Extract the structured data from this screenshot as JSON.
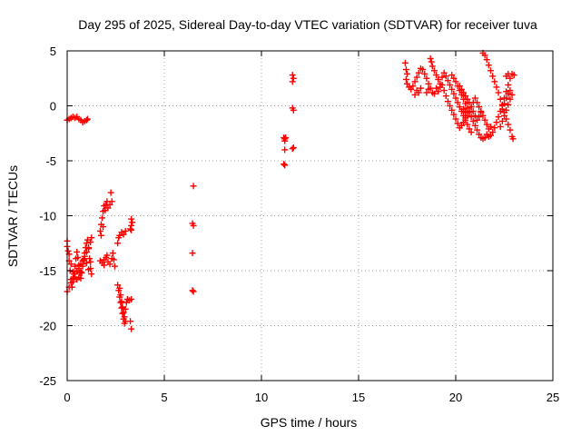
{
  "chart_data": {
    "type": "scatter",
    "title": "Day 295 of 2025, Sidereal Day-to-day VTEC variation (SDTVAR) for receiver tuva",
    "xlabel": "GPS time / hours",
    "ylabel": "SDTVAR / TECUs",
    "xlim": [
      0,
      25
    ],
    "ylim": [
      -25,
      5
    ],
    "xticks": [
      0,
      5,
      10,
      15,
      20,
      25
    ],
    "yticks": [
      -25,
      -20,
      -15,
      -10,
      -5,
      0,
      5
    ],
    "grid": true,
    "marker": "+",
    "color": "#ff0000",
    "series": [
      {
        "name": "sdtvar",
        "points": [
          [
            0.0,
            -1.3
          ],
          [
            0.1,
            -1.2
          ],
          [
            0.2,
            -1.1
          ],
          [
            0.3,
            -1.0
          ],
          [
            0.4,
            -1.1
          ],
          [
            0.5,
            -1.0
          ],
          [
            0.6,
            -1.2
          ],
          [
            0.7,
            -1.3
          ],
          [
            0.8,
            -1.5
          ],
          [
            0.9,
            -1.4
          ],
          [
            1.0,
            -1.3
          ],
          [
            1.05,
            -1.2
          ],
          [
            0.0,
            -12.3
          ],
          [
            0.05,
            -13.2
          ],
          [
            0.1,
            -14.1
          ],
          [
            0.15,
            -15.0
          ],
          [
            0.2,
            -15.8
          ],
          [
            0.25,
            -16.5
          ],
          [
            0.3,
            -16.0
          ],
          [
            0.35,
            -15.3
          ],
          [
            0.4,
            -14.6
          ],
          [
            0.45,
            -13.9
          ],
          [
            0.5,
            -13.3
          ],
          [
            0.55,
            -13.8
          ],
          [
            0.6,
            -14.5
          ],
          [
            0.65,
            -15.2
          ],
          [
            0.7,
            -15.7
          ],
          [
            0.75,
            -15.2
          ],
          [
            0.8,
            -14.6
          ],
          [
            0.85,
            -14.0
          ],
          [
            0.9,
            -13.4
          ],
          [
            0.95,
            -12.9
          ],
          [
            1.0,
            -12.5
          ],
          [
            1.05,
            -12.2
          ],
          [
            1.1,
            -13.0
          ],
          [
            1.15,
            -13.9
          ],
          [
            1.2,
            -14.8
          ],
          [
            1.25,
            -15.3
          ],
          [
            0.0,
            -16.9
          ],
          [
            0.1,
            -16.5
          ],
          [
            0.2,
            -16.1
          ],
          [
            0.3,
            -15.7
          ],
          [
            0.4,
            -15.3
          ],
          [
            0.5,
            -15.0
          ],
          [
            0.6,
            -14.8
          ],
          [
            0.7,
            -14.4
          ],
          [
            0.8,
            -14.1
          ],
          [
            0.9,
            -13.7
          ],
          [
            1.0,
            -13.3
          ],
          [
            1.1,
            -12.9
          ],
          [
            1.2,
            -12.4
          ],
          [
            1.25,
            -12.0
          ],
          [
            0.0,
            -12.8
          ],
          [
            0.1,
            -13.5
          ],
          [
            0.2,
            -14.4
          ],
          [
            0.3,
            -15.1
          ],
          [
            0.4,
            -15.6
          ],
          [
            0.5,
            -15.8
          ],
          [
            0.6,
            -15.6
          ],
          [
            0.7,
            -15.1
          ],
          [
            0.8,
            -14.4
          ],
          [
            0.9,
            -13.9
          ],
          [
            1.0,
            -14.3
          ],
          [
            1.1,
            -14.9
          ],
          [
            1.2,
            -14.2
          ],
          [
            1.7,
            -11.4
          ],
          [
            1.75,
            -10.8
          ],
          [
            1.8,
            -10.2
          ],
          [
            1.85,
            -9.6
          ],
          [
            1.9,
            -9.1
          ],
          [
            1.95,
            -9.5
          ],
          [
            2.0,
            -9.0
          ],
          [
            2.05,
            -8.7
          ],
          [
            2.1,
            -9.3
          ],
          [
            2.2,
            -9.0
          ],
          [
            2.3,
            -8.7
          ],
          [
            2.25,
            -7.9
          ],
          [
            1.75,
            -11.8
          ],
          [
            1.85,
            -11.0
          ],
          [
            1.7,
            -14.1
          ],
          [
            1.8,
            -14.3
          ],
          [
            1.9,
            -14.0
          ],
          [
            2.0,
            -13.8
          ],
          [
            2.1,
            -14.2
          ],
          [
            2.2,
            -14.4
          ],
          [
            2.3,
            -13.9
          ],
          [
            2.35,
            -13.4
          ],
          [
            2.4,
            -14.0
          ],
          [
            2.45,
            -14.6
          ],
          [
            1.9,
            -14.5
          ],
          [
            2.05,
            -13.6
          ],
          [
            2.6,
            -12.5
          ],
          [
            2.65,
            -12.0
          ],
          [
            2.7,
            -11.8
          ],
          [
            2.8,
            -11.5
          ],
          [
            2.9,
            -11.7
          ],
          [
            3.0,
            -11.4
          ],
          [
            2.6,
            -16.3
          ],
          [
            2.65,
            -16.8
          ],
          [
            2.7,
            -17.4
          ],
          [
            2.75,
            -17.9
          ],
          [
            2.8,
            -18.4
          ],
          [
            2.85,
            -18.9
          ],
          [
            2.9,
            -19.4
          ],
          [
            2.95,
            -19.8
          ],
          [
            3.0,
            -19.6
          ],
          [
            2.7,
            -16.6
          ],
          [
            2.75,
            -17.2
          ],
          [
            2.8,
            -17.8
          ],
          [
            2.85,
            -18.3
          ],
          [
            2.9,
            -18.8
          ],
          [
            2.95,
            -19.2
          ],
          [
            3.0,
            -18.5
          ],
          [
            3.05,
            -17.9
          ],
          [
            3.1,
            -17.6
          ],
          [
            3.2,
            -17.7
          ],
          [
            3.3,
            -17.6
          ],
          [
            3.25,
            -19.6
          ],
          [
            3.3,
            -20.3
          ],
          [
            3.3,
            -10.3
          ],
          [
            3.35,
            -10.6
          ],
          [
            3.3,
            -10.9
          ],
          [
            3.3,
            -11.3
          ],
          [
            3.25,
            -11.2
          ],
          [
            6.5,
            -7.3
          ],
          [
            6.45,
            -10.7
          ],
          [
            6.5,
            -10.9
          ],
          [
            6.45,
            -13.4
          ],
          [
            6.45,
            -16.8
          ],
          [
            6.5,
            -16.9
          ],
          [
            11.15,
            -2.9
          ],
          [
            11.2,
            -3.0
          ],
          [
            11.25,
            -2.9
          ],
          [
            11.2,
            -3.2
          ],
          [
            11.2,
            -4.0
          ],
          [
            11.6,
            -3.9
          ],
          [
            11.65,
            -3.8
          ],
          [
            11.15,
            -5.3
          ],
          [
            11.2,
            -5.4
          ],
          [
            11.6,
            -0.2
          ],
          [
            11.65,
            -0.4
          ],
          [
            11.6,
            2.8
          ],
          [
            11.65,
            2.5
          ],
          [
            11.6,
            2.2
          ],
          [
            17.4,
            3.9
          ],
          [
            17.45,
            3.3
          ],
          [
            17.5,
            2.9
          ],
          [
            17.45,
            2.4
          ],
          [
            17.5,
            2.0
          ],
          [
            17.6,
            1.7
          ],
          [
            17.7,
            1.5
          ],
          [
            17.8,
            1.8
          ],
          [
            17.9,
            2.2
          ],
          [
            18.0,
            2.6
          ],
          [
            18.1,
            3.0
          ],
          [
            18.2,
            3.4
          ],
          [
            18.3,
            3.3
          ],
          [
            18.4,
            2.9
          ],
          [
            18.5,
            2.5
          ],
          [
            18.6,
            2.0
          ],
          [
            18.7,
            1.6
          ],
          [
            18.8,
            1.2
          ],
          [
            18.9,
            1.1
          ],
          [
            18.2,
            1.6
          ],
          [
            18.1,
            1.2
          ],
          [
            18.0,
            1.4
          ],
          [
            17.9,
            1.0
          ],
          [
            18.5,
            1.2
          ],
          [
            18.6,
            1.5
          ],
          [
            18.7,
            4.3
          ],
          [
            18.75,
            4.0
          ],
          [
            18.8,
            3.6
          ],
          [
            18.9,
            3.2
          ],
          [
            19.0,
            2.8
          ],
          [
            19.1,
            2.4
          ],
          [
            19.2,
            2.0
          ],
          [
            19.3,
            2.6
          ],
          [
            19.4,
            3.0
          ],
          [
            19.5,
            2.7
          ],
          [
            19.6,
            2.3
          ],
          [
            19.7,
            1.9
          ],
          [
            19.8,
            1.5
          ],
          [
            19.9,
            1.1
          ],
          [
            20.0,
            0.7
          ],
          [
            20.1,
            0.3
          ],
          [
            20.2,
            -0.1
          ],
          [
            20.3,
            -0.5
          ],
          [
            20.4,
            -0.9
          ],
          [
            20.5,
            -1.3
          ],
          [
            20.6,
            -1.7
          ],
          [
            20.7,
            -2.1
          ],
          [
            20.8,
            -2.4
          ],
          [
            19.0,
            1.6
          ],
          [
            19.1,
            1.3
          ],
          [
            19.2,
            1.7
          ],
          [
            19.3,
            1.9
          ],
          [
            19.4,
            1.4
          ],
          [
            19.5,
            0.9
          ],
          [
            19.6,
            0.4
          ],
          [
            19.7,
            0.0
          ],
          [
            19.8,
            -0.4
          ],
          [
            19.9,
            -0.8
          ],
          [
            20.0,
            -1.2
          ],
          [
            20.1,
            -1.6
          ],
          [
            20.2,
            -2.0
          ],
          [
            20.3,
            -1.8
          ],
          [
            20.4,
            -1.5
          ],
          [
            20.5,
            -1.1
          ],
          [
            19.8,
            2.8
          ],
          [
            19.9,
            2.5
          ],
          [
            20.0,
            2.2
          ],
          [
            20.1,
            1.8
          ],
          [
            20.2,
            1.4
          ],
          [
            20.3,
            1.0
          ],
          [
            20.4,
            0.6
          ],
          [
            20.5,
            0.2
          ],
          [
            20.6,
            -0.2
          ],
          [
            20.7,
            -0.6
          ],
          [
            20.8,
            -1.0
          ],
          [
            20.9,
            -1.4
          ],
          [
            21.0,
            -1.8
          ],
          [
            21.1,
            -2.2
          ],
          [
            21.2,
            -2.6
          ],
          [
            21.3,
            -2.9
          ],
          [
            21.4,
            -3.0
          ],
          [
            20.2,
            1.8
          ],
          [
            20.3,
            1.5
          ],
          [
            20.4,
            1.2
          ],
          [
            20.5,
            0.9
          ],
          [
            20.6,
            0.6
          ],
          [
            20.7,
            0.3
          ],
          [
            20.8,
            -0.1
          ],
          [
            20.9,
            -0.5
          ],
          [
            21.0,
            -0.9
          ],
          [
            21.1,
            -1.3
          ],
          [
            21.2,
            -1.0
          ],
          [
            21.3,
            -0.6
          ],
          [
            21.4,
            4.8
          ],
          [
            21.5,
            4.6
          ],
          [
            21.6,
            4.2
          ],
          [
            21.7,
            3.7
          ],
          [
            21.8,
            3.2
          ],
          [
            21.9,
            2.7
          ],
          [
            22.0,
            2.2
          ],
          [
            22.1,
            1.7
          ],
          [
            22.2,
            1.2
          ],
          [
            22.3,
            0.6
          ],
          [
            22.4,
            0.0
          ],
          [
            22.5,
            -0.6
          ],
          [
            22.6,
            -1.2
          ],
          [
            22.7,
            -1.7
          ],
          [
            22.8,
            -2.2
          ],
          [
            22.9,
            -2.8
          ],
          [
            22.95,
            -3.0
          ],
          [
            21.5,
            -2.9
          ],
          [
            21.6,
            -2.6
          ],
          [
            21.7,
            -2.8
          ],
          [
            21.8,
            -2.7
          ],
          [
            21.9,
            -2.4
          ],
          [
            22.0,
            -2.0
          ],
          [
            22.1,
            -1.5
          ],
          [
            22.2,
            -1.0
          ],
          [
            22.3,
            -0.5
          ],
          [
            22.4,
            0.1
          ],
          [
            22.5,
            0.7
          ],
          [
            22.6,
            1.3
          ],
          [
            22.7,
            1.9
          ],
          [
            22.8,
            2.5
          ],
          [
            22.9,
            2.9
          ],
          [
            23.0,
            2.8
          ],
          [
            22.7,
            2.9
          ],
          [
            22.6,
            2.7
          ],
          [
            22.3,
            -1.9
          ],
          [
            22.4,
            -1.4
          ],
          [
            22.5,
            -0.9
          ],
          [
            22.6,
            -0.4
          ],
          [
            22.7,
            0.1
          ],
          [
            22.8,
            0.6
          ],
          [
            22.9,
            1.0
          ],
          [
            22.8,
            1.4
          ],
          [
            22.7,
            1.1
          ],
          [
            22.6,
            0.7
          ],
          [
            22.5,
            0.2
          ],
          [
            22.4,
            -0.3
          ],
          [
            20.4,
            -0.3
          ],
          [
            20.5,
            -0.6
          ],
          [
            20.6,
            -0.9
          ],
          [
            20.7,
            -0.5
          ],
          [
            20.8,
            -0.1
          ],
          [
            20.9,
            0.3
          ],
          [
            21.0,
            0.7
          ],
          [
            21.1,
            0.3
          ],
          [
            21.2,
            -0.1
          ],
          [
            21.3,
            -0.5
          ],
          [
            21.4,
            -0.9
          ],
          [
            21.5,
            -1.3
          ],
          [
            21.6,
            -1.7
          ],
          [
            21.7,
            -2.1
          ],
          [
            21.8,
            -1.9
          ]
        ]
      }
    ]
  }
}
